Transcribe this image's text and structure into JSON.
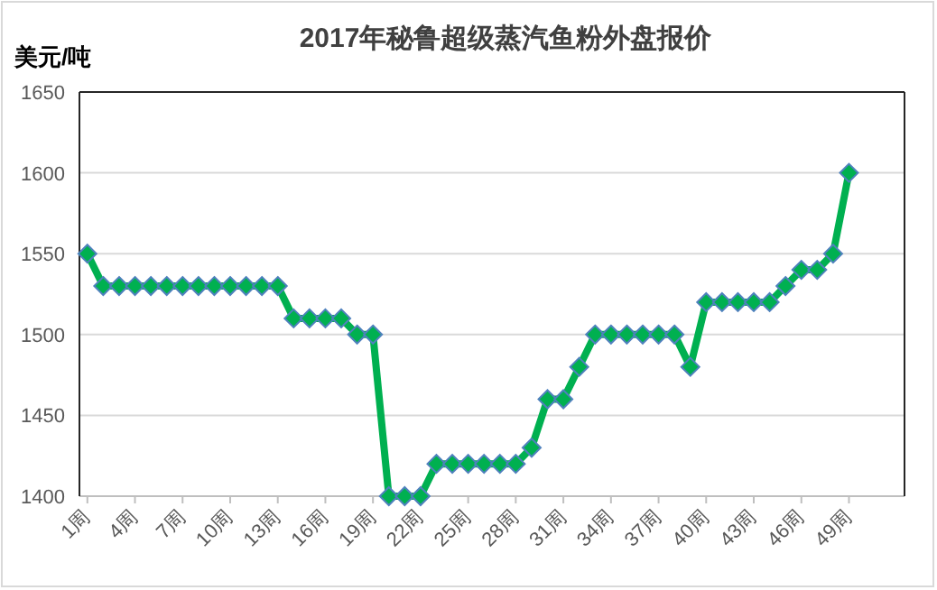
{
  "chart_data": {
    "type": "line",
    "title": "2017年秘鲁超级蒸汽鱼粉外盘报价",
    "ylabel": "美元/吨",
    "categories": [
      "1周",
      null,
      null,
      "4周",
      null,
      null,
      "7周",
      null,
      null,
      "10周",
      null,
      null,
      "13周",
      null,
      null,
      "16周",
      null,
      null,
      "19周",
      null,
      null,
      "22周",
      null,
      null,
      "25周",
      null,
      null,
      "28周",
      null,
      null,
      "31周",
      null,
      null,
      "34周",
      null,
      null,
      "37周",
      null,
      null,
      "40周",
      null,
      null,
      "43周",
      null,
      null,
      "46周",
      null,
      null,
      "49周",
      null,
      null,
      null
    ],
    "series": [
      {
        "color": "#00b050",
        "values": [
          1550,
          1530,
          1530,
          1530,
          1530,
          1530,
          1530,
          1530,
          1530,
          1530,
          1530,
          1530,
          1530,
          1510,
          1510,
          1510,
          1510,
          1500,
          1500,
          1400,
          1400,
          1400,
          1420,
          1420,
          1420,
          1420,
          1420,
          1420,
          1430,
          1460,
          1460,
          1480,
          1500,
          1500,
          1500,
          1500,
          1500,
          1500,
          1480,
          1520,
          1520,
          1520,
          1520,
          1520,
          1530,
          1540,
          1540,
          1550,
          1600,
          null,
          null,
          null
        ]
      }
    ],
    "ylim": [
      1400,
      1650
    ],
    "yticks": [
      1400,
      1450,
      1500,
      1550,
      1600,
      1650
    ],
    "grid": "y",
    "marker": "diamond",
    "line_style": "solid"
  }
}
